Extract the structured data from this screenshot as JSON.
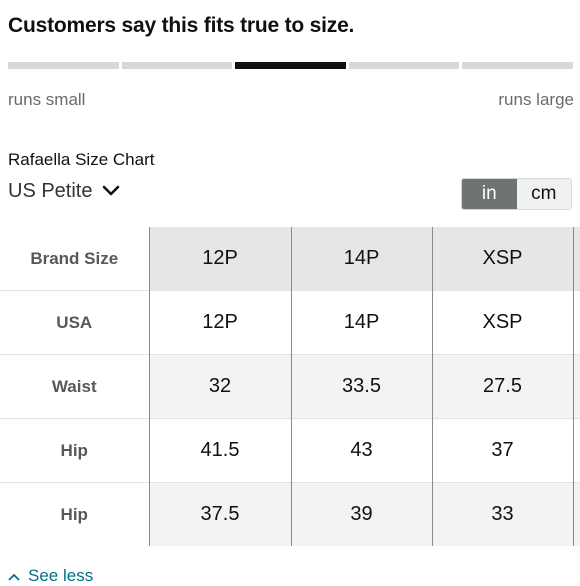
{
  "fit": {
    "title": "Customers say this fits true to size.",
    "segments": 5,
    "active_segment": 3,
    "left_label": "runs small",
    "right_label": "runs large"
  },
  "chart": {
    "title": "Rafaella Size Chart",
    "region": "US Petite",
    "units": {
      "in_label": "in",
      "cm_label": "cm",
      "selected": "in"
    }
  },
  "table": {
    "header_label": "Brand Size",
    "columns": [
      "12P",
      "14P",
      "XSP"
    ],
    "rows": [
      {
        "label": "USA",
        "values": [
          "12P",
          "14P",
          "XSP"
        ]
      },
      {
        "label": "Waist",
        "values": [
          "32",
          "33.5",
          "27.5"
        ]
      },
      {
        "label": "Hip",
        "values": [
          "41.5",
          "43",
          "37"
        ]
      },
      {
        "label": "Hip",
        "values": [
          "37.5",
          "39",
          "33"
        ]
      }
    ]
  },
  "footer": {
    "see_less_label": "See less"
  },
  "colors": {
    "link": "#007185",
    "active_bar": "#0f1111",
    "toggle_selected": "#6f7373"
  }
}
